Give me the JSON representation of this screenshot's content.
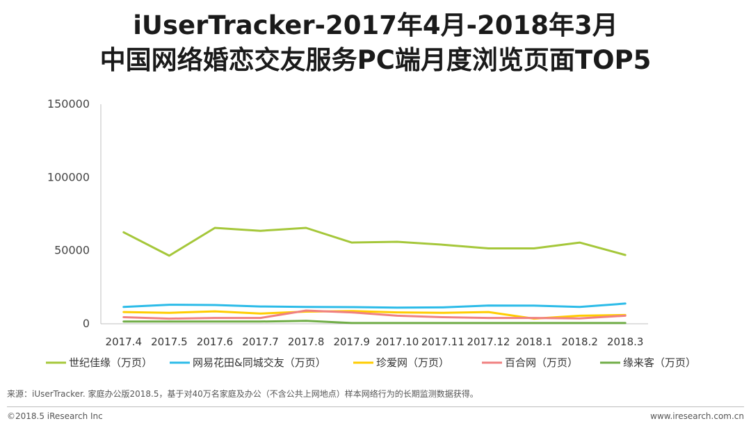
{
  "header": {
    "title_line1": "iUserTracker-2017年4月-2018年3月",
    "title_line2": "中国网络婚恋交友服务PC端月度浏览页面TOP5"
  },
  "chart_data": {
    "type": "line",
    "title": "中国网络婚恋交友服务PC端月度浏览页面TOP5",
    "xlabel": "",
    "ylabel": "",
    "ylim": [
      0,
      150000
    ],
    "yticks": [
      0,
      50000,
      100000,
      150000
    ],
    "ytick_labels": [
      "0",
      "50000",
      "100000",
      "150000"
    ],
    "categories": [
      "2017.4",
      "2017.5",
      "2017.6",
      "2017.7",
      "2017.8",
      "2017.9",
      "2017.10",
      "2017.11",
      "2017.12",
      "2018.1",
      "2018.2",
      "2018.3"
    ],
    "legend_position": "bottom",
    "series": [
      {
        "name": "世纪佳缘（万页）",
        "color": "#a5c73a",
        "values": [
          62500,
          46500,
          65500,
          63500,
          65500,
          55500,
          56000,
          54000,
          51500,
          51500,
          55500,
          47000
        ]
      },
      {
        "name": "网易花田&同城交友（万页）",
        "color": "#2bbbe8",
        "values": [
          11500,
          13000,
          12800,
          11800,
          11500,
          11400,
          11000,
          11200,
          12500,
          12400,
          11500,
          13800
        ]
      },
      {
        "name": "珍爱网（万页）",
        "color": "#ffcc00",
        "values": [
          8000,
          7500,
          8500,
          7000,
          8300,
          8700,
          7800,
          7500,
          8000,
          3500,
          5500,
          6000
        ]
      },
      {
        "name": "百合网（万页）",
        "color": "#f08080",
        "values": [
          4500,
          3500,
          4000,
          4000,
          9000,
          7800,
          5500,
          4500,
          4000,
          4000,
          3700,
          5500
        ]
      },
      {
        "name": "缘来客（万页）",
        "color": "#70ad47",
        "values": [
          1500,
          1500,
          1500,
          1500,
          2000,
          500,
          500,
          500,
          500,
          500,
          500,
          500
        ]
      }
    ]
  },
  "footer": {
    "source": "来源：iUserTracker. 家庭办公版2018.5，基于对40万名家庭及办公（不含公共上网地点）样本网络行为的长期监测数据获得。",
    "copyright": "©2018.5 iResearch Inc",
    "website": "www.iresearch.com.cn"
  }
}
